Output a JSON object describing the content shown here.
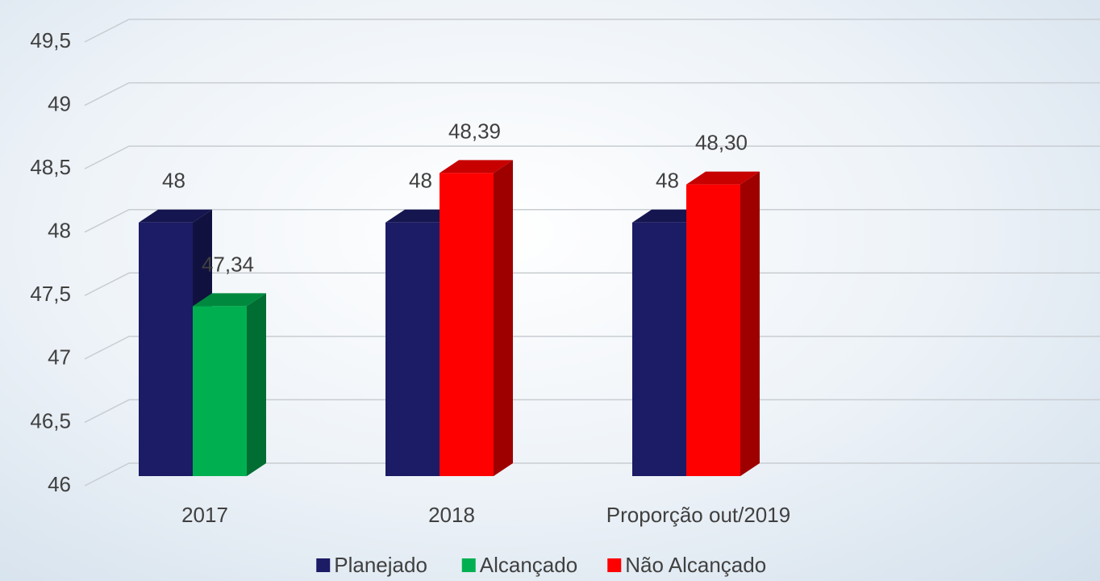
{
  "chart_data": {
    "type": "bar3d",
    "categories": [
      "2017",
      "2018",
      "Proporção out/2019"
    ],
    "series": [
      {
        "name": "Planejado",
        "color": "#1b1b66",
        "values": [
          48,
          48,
          48
        ]
      },
      {
        "name": "Alcançado",
        "color": "#00b050",
        "values": [
          47.34,
          null,
          null
        ],
        "value_labels": [
          "47,34",
          null,
          null
        ]
      },
      {
        "name": "Não Alcançado",
        "color": "#ff0000",
        "values": [
          null,
          48.39,
          48.3
        ],
        "value_labels": [
          null,
          "48,39",
          "48,30"
        ]
      }
    ],
    "ylim": [
      46,
      49.5
    ],
    "yticks": [
      46,
      {
        "value": 46.5,
        "label": "46,5"
      },
      47,
      {
        "value": 47.5,
        "label": "47,5"
      },
      48,
      {
        "value": 48.5,
        "label": "48,5"
      },
      49,
      {
        "value": 49.5,
        "label": "49,5"
      }
    ],
    "grid": true,
    "legend": "bottom"
  }
}
